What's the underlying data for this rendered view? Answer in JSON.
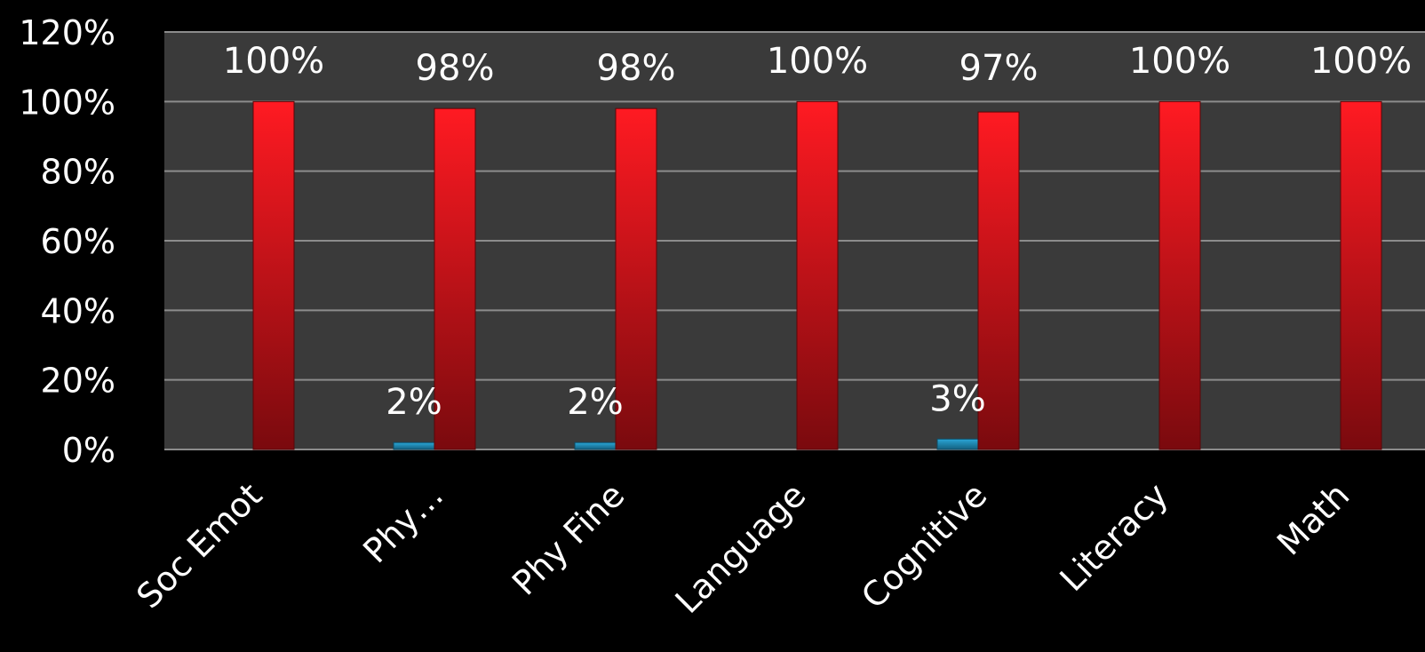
{
  "chart_data": {
    "type": "bar",
    "categories": [
      "Soc Emot",
      "Phy…",
      "Phy Fine",
      "Language",
      "Cognitive",
      "Literacy",
      "Math"
    ],
    "series": [
      {
        "values": [
          0,
          2,
          2,
          0,
          3,
          0,
          0
        ],
        "labels": [
          "",
          "2%",
          "2%",
          "",
          "3%",
          "",
          ""
        ],
        "color": "#1f8fb8"
      },
      {
        "values": [
          100,
          98,
          98,
          100,
          97,
          100,
          100
        ],
        "labels": [
          "100%",
          "98%",
          "98%",
          "100%",
          "97%",
          "100%",
          "100%"
        ],
        "color": "#d0101a"
      }
    ],
    "ylim": [
      0,
      120
    ],
    "yticks": [
      0,
      20,
      40,
      60,
      80,
      100,
      120
    ],
    "ytick_labels": [
      "0%",
      "20%",
      "40%",
      "60%",
      "80%",
      "100%",
      "120%"
    ],
    "grid": true,
    "colors": {
      "background": "#000000",
      "plot_area": "#3a3a3a",
      "gridline": "#8c8c8c"
    }
  }
}
